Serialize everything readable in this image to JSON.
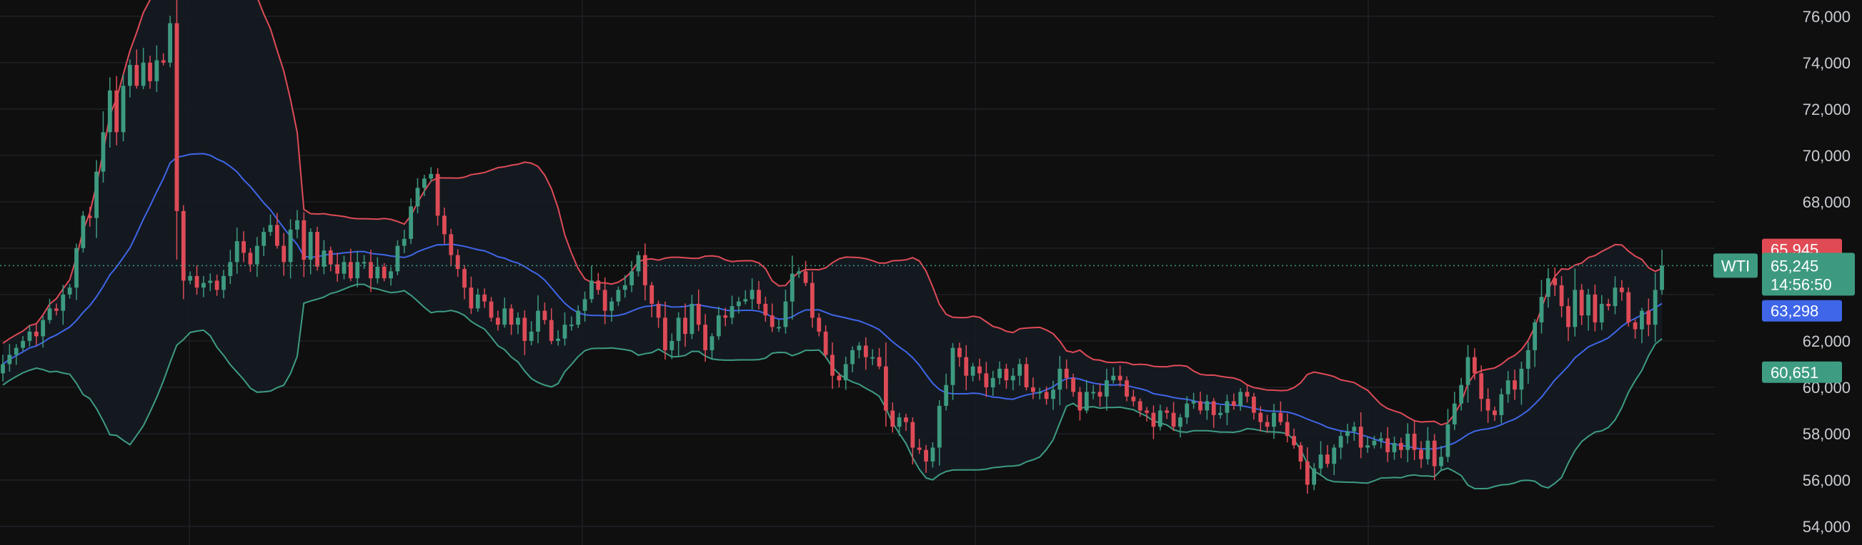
{
  "chart_data": {
    "type": "candlestick",
    "symbol": "WTI",
    "y_axis": {
      "ticks": [
        "76,000",
        "74,000",
        "72,000",
        "70,000",
        "68,000",
        "62,000",
        "60,000",
        "58,000",
        "56,000",
        "54,000"
      ],
      "tick_values": [
        76000,
        74000,
        72000,
        70000,
        68000,
        62000,
        60000,
        58000,
        56000,
        54000
      ],
      "ylim": [
        53200,
        76700
      ]
    },
    "grid": true,
    "last_price": {
      "value": 65245,
      "label": "65,245",
      "countdown": "14:56:50"
    },
    "price_markers": [
      {
        "name": "upper-band-marker",
        "value": 65945,
        "label": "65,945",
        "color": "#e04a55"
      },
      {
        "name": "middle-band-marker",
        "value": 63298,
        "label": "63,298",
        "color": "#3f66e8"
      },
      {
        "name": "lower-band-marker",
        "value": 60651,
        "label": "60,651",
        "color": "#3e9c83"
      }
    ],
    "colors": {
      "background": "#0f0f10",
      "grid": "#1f2125",
      "up": "#3d9a80",
      "down": "#de4b56",
      "upper_band": "#de4b56",
      "middle_band": "#3f66e8",
      "lower_band": "#3e9c83",
      "band_fill": "#151b22",
      "last_price": "#3d9a80",
      "axis_text": "#c9ccd1"
    },
    "close_series": [
      61000,
      61400,
      61700,
      62000,
      62400,
      62200,
      62900,
      63400,
      63300,
      64000,
      64300,
      66000,
      67400,
      67300,
      69300,
      71000,
      72800,
      71000,
      73000,
      73900,
      73000,
      74000,
      73200,
      74100,
      74000,
      75700,
      67600,
      64600,
      64800,
      64300,
      64500,
      64600,
      64200,
      64800,
      65400,
      66300,
      65800,
      65300,
      66100,
      66700,
      67000,
      66100,
      65400,
      66800,
      67200,
      65500,
      66700,
      65200,
      65900,
      65300,
      64900,
      65400,
      64700,
      65400,
      65400,
      64700,
      65200,
      64700,
      65000,
      66100,
      66400,
      67800,
      68600,
      69000,
      69200,
      67400,
      66600,
      65700,
      65100,
      64300,
      63400,
      64000,
      63700,
      63000,
      62700,
      63400,
      62700,
      63000,
      62000,
      62400,
      63300,
      62900,
      62000,
      62100,
      62700,
      62700,
      63300,
      63800,
      64600,
      64200,
      63300,
      63700,
      64200,
      64400,
      65000,
      65700,
      64400,
      63600,
      63000,
      61600,
      62000,
      63000,
      62300,
      63600,
      62700,
      61600,
      62200,
      63100,
      63000,
      63500,
      63700,
      63800,
      64200,
      63600,
      63100,
      62600,
      62600,
      63700,
      64900,
      65000,
      64500,
      63000,
      62400,
      61400,
      60500,
      60300,
      61000,
      61600,
      61800,
      61300,
      61300,
      60900,
      59000,
      58300,
      58700,
      58500,
      57400,
      57300,
      56800,
      57400,
      59200,
      60100,
      61700,
      61300,
      60500,
      60900,
      60600,
      60000,
      60400,
      60800,
      60300,
      60500,
      61000,
      60000,
      59800,
      59800,
      59500,
      59900,
      60800,
      60400,
      59800,
      59000,
      59800,
      59800,
      59600,
      60300,
      60500,
      60300,
      59600,
      59400,
      59000,
      58900,
      58300,
      59000,
      58900,
      58300,
      58700,
      59300,
      59400,
      59000,
      59400,
      58800,
      58900,
      59400,
      59200,
      59800,
      59600,
      58900,
      58500,
      58300,
      58900,
      58500,
      57900,
      57500,
      56800,
      55800,
      56500,
      57100,
      56700,
      57400,
      57900,
      58100,
      58300,
      57400,
      57500,
      57700,
      57800,
      57200,
      57600,
      57300,
      58000,
      57300,
      56900,
      57700,
      56600,
      57000,
      58400,
      59300,
      60100,
      61300,
      60600,
      59500,
      59000,
      58800,
      59700,
      60300,
      59900,
      60800,
      61600,
      62800,
      63900,
      64700,
      64400,
      63500,
      62600,
      64200,
      63100,
      64000,
      62800,
      63600,
      63500,
      64300,
      64100,
      62800,
      62500,
      63300,
      62700,
      64200,
      65245
    ]
  }
}
